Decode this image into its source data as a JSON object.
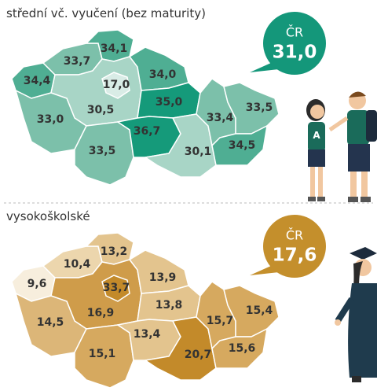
{
  "maps": [
    {
      "title": "střední vč. vyučení (bez maturity)",
      "national": {
        "label": "ČR",
        "value": "31,0"
      },
      "regions": [
        "34,4",
        "33,7",
        "34,1",
        "30,5",
        "34,0",
        "35,0",
        "33,0",
        "33,5",
        "36,7",
        "30,1",
        "33,4",
        "33,5",
        "34,5",
        "17,0"
      ]
    },
    {
      "title": "vysokoškolské",
      "national": {
        "label": "ČR",
        "value": "17,6"
      },
      "regions": [
        "9,6",
        "10,4",
        "13,2",
        "16,9",
        "13,9",
        "13,8",
        "14,5",
        "15,1",
        "13,4",
        "20,7",
        "15,7",
        "15,4",
        "15,6",
        "33,7"
      ]
    }
  ]
}
